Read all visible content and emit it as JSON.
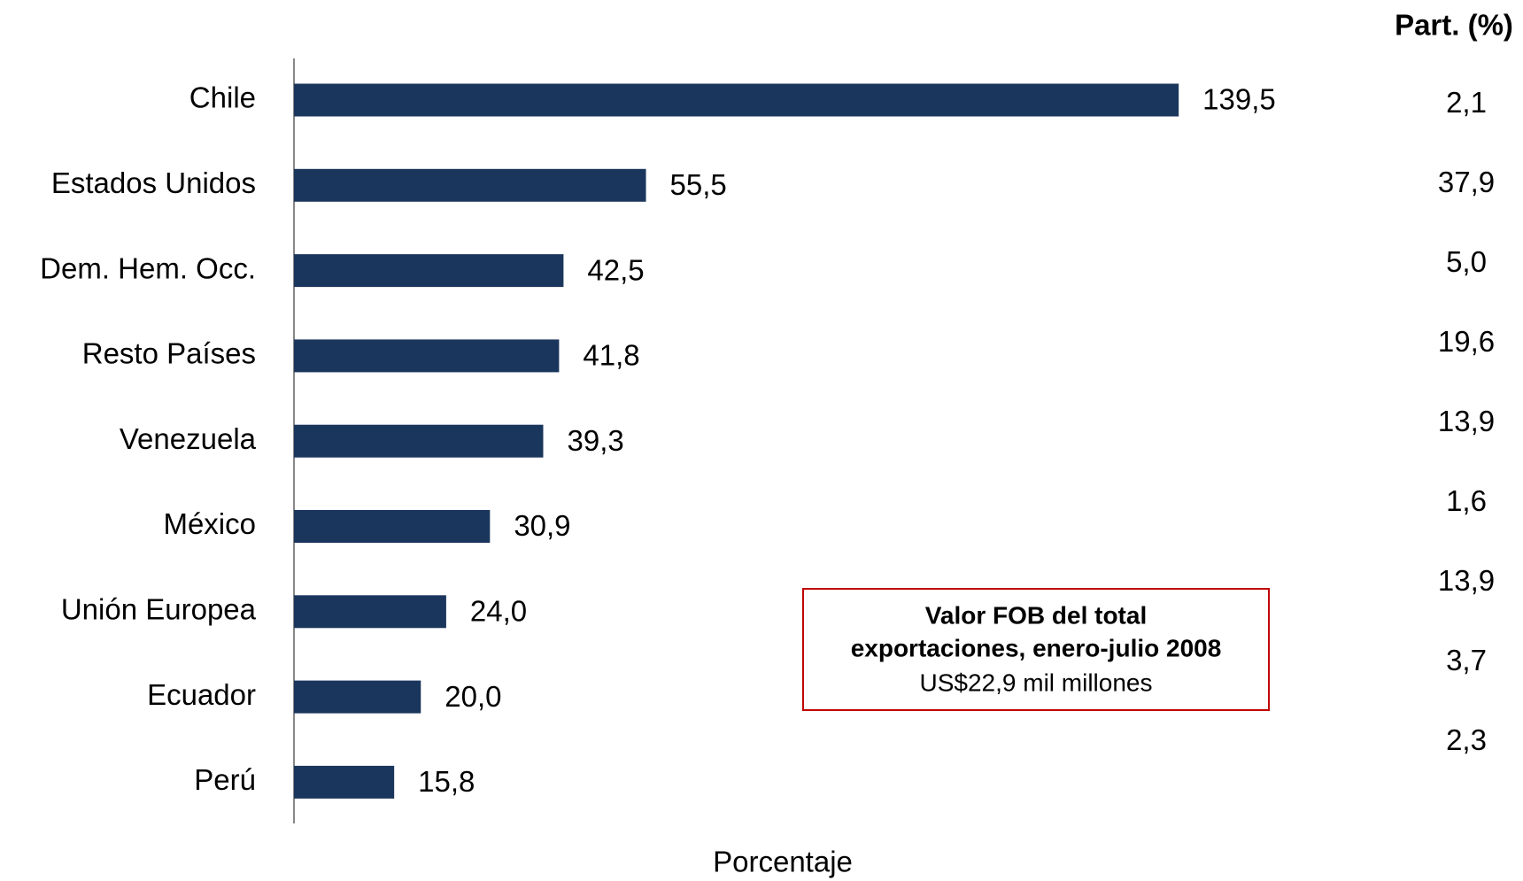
{
  "chart_data": {
    "type": "bar",
    "orientation": "horizontal",
    "categories": [
      "Chile",
      "Estados Unidos",
      "Dem. Hem. Occ.",
      "Resto Países",
      "Venezuela",
      "México",
      "Unión Europea",
      "Ecuador",
      "Perú"
    ],
    "values": [
      139.5,
      55.5,
      42.5,
      41.8,
      39.3,
      30.9,
      24.0,
      20.0,
      15.8
    ],
    "value_labels": [
      "139,5",
      "55,5",
      "42,5",
      "41,8",
      "39,3",
      "30,9",
      "24,0",
      "20,0",
      "15,8"
    ],
    "color": "#1b365d",
    "xlim": [
      0,
      160
    ],
    "xlabel": "Porcentaje",
    "share_header": "Part. (%)",
    "share_labels": [
      "2,1",
      "37,9",
      "5,0",
      "19,6",
      "13,9",
      "1,6",
      "13,9",
      "3,7",
      "2,3"
    ],
    "annotation": {
      "title": "Valor FOB del total",
      "title2": "exportaciones, enero-julio 2008",
      "text": "US$22,9 mil millones"
    }
  }
}
